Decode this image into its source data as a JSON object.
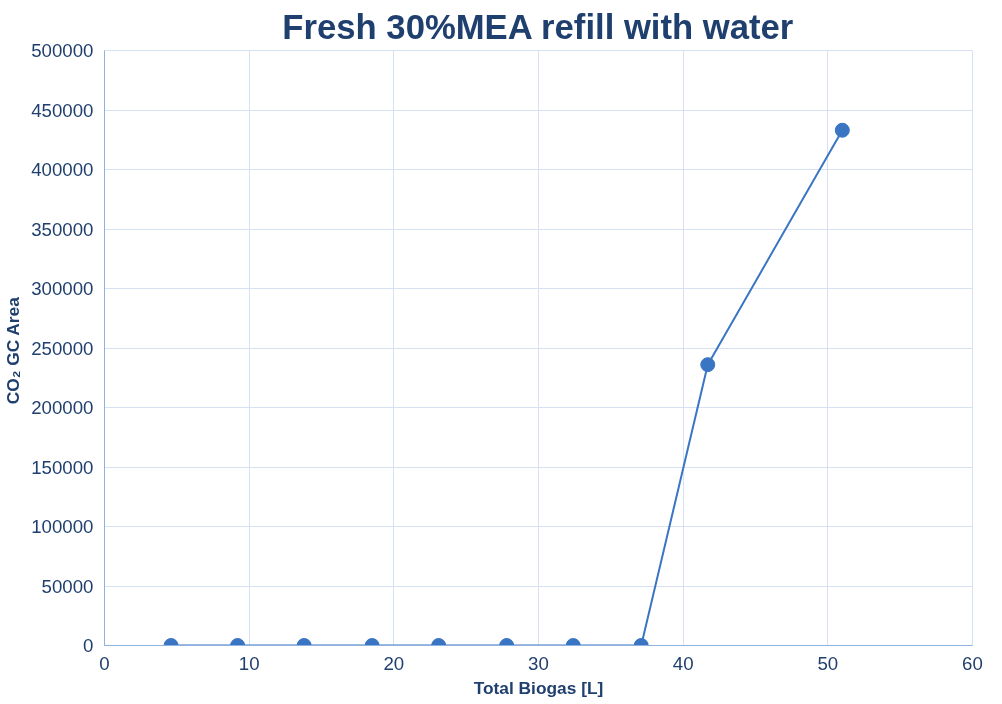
{
  "chart_data": {
    "type": "line",
    "title": "Fresh 30%MEA refill with water",
    "xlabel": "Total Biogas [L]",
    "ylabel": "CO₂ GC  Area",
    "x": [
      4.6,
      9.2,
      13.8,
      18.5,
      23.1,
      27.8,
      32.4,
      37.1,
      41.7,
      51.0
    ],
    "series": [
      {
        "color": "#3a75c4",
        "values": [
          0,
          0,
          0,
          0,
          0,
          0,
          0,
          0,
          236000,
          433000
        ]
      }
    ],
    "xlim": [
      0,
      60
    ],
    "xticks": [
      0,
      10,
      20,
      30,
      40,
      50,
      60
    ],
    "ylim": [
      0,
      500000
    ],
    "yticks": [
      0,
      50000,
      100000,
      150000,
      200000,
      250000,
      300000,
      350000,
      400000,
      450000,
      500000
    ],
    "grid": true,
    "marker": "circle",
    "line_style": "solid"
  }
}
